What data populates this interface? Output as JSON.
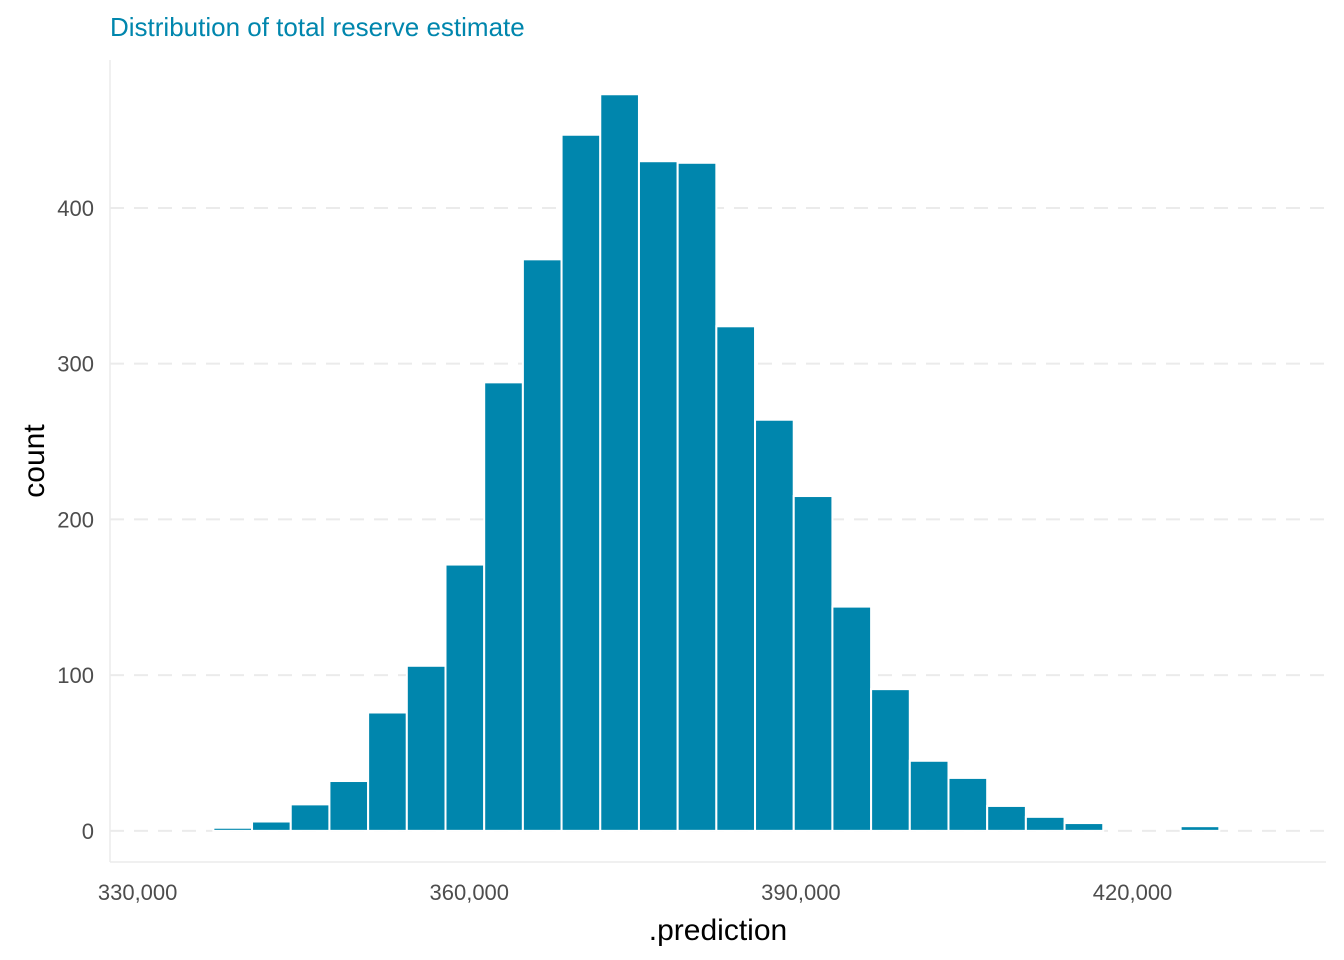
{
  "chart_data": {
    "type": "bar",
    "title": "Distribution of total reserve estimate",
    "xlabel": ".prediction",
    "ylabel": "count",
    "xlim": [
      327500,
      437500
    ],
    "ylim": [
      -20,
      495
    ],
    "x_ticks": [
      330000,
      360000,
      390000,
      420000
    ],
    "x_tick_labels": [
      "330,000",
      "360,000",
      "390,000",
      "420,000"
    ],
    "y_ticks": [
      0,
      100,
      200,
      300,
      400
    ],
    "y_tick_labels": [
      "0",
      "100",
      "200",
      "300",
      "400"
    ],
    "bin_width": 3500,
    "bin_centers": [
      331600,
      335100,
      338600,
      342100,
      345600,
      349100,
      352600,
      356100,
      359600,
      363100,
      366600,
      370100,
      373600,
      377100,
      380600,
      384100,
      387600,
      391100,
      394600,
      398100,
      401600,
      405100,
      408600,
      412100,
      415600,
      419100,
      422600,
      426100,
      429600,
      433100
    ],
    "values": [
      0,
      0,
      2,
      6,
      17,
      32,
      76,
      106,
      171,
      288,
      367,
      447,
      473,
      430,
      429,
      324,
      264,
      215,
      144,
      91,
      45,
      34,
      16,
      9,
      5,
      0,
      0,
      3,
      0,
      0
    ],
    "bar_color": "#0086AD",
    "bar_edge_color": "#ffffff",
    "grid": true,
    "legend": "none"
  }
}
